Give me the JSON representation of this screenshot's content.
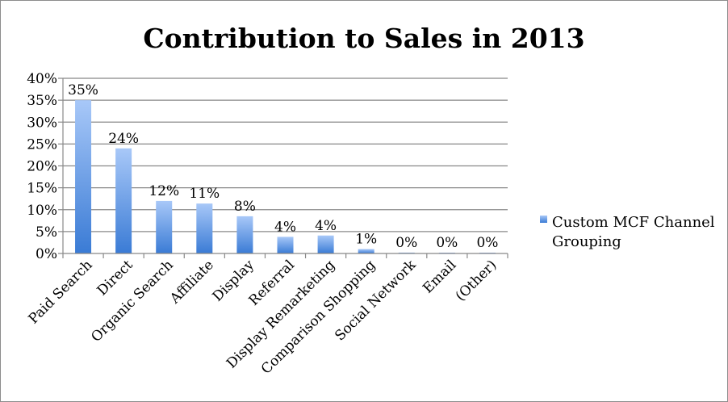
{
  "chart_data": {
    "type": "bar",
    "title": "Contribution to Sales in 2013",
    "xlabel": "",
    "ylabel": "",
    "categories": [
      "Paid Search",
      "Direct",
      "Organic Search",
      "Affiliate",
      "Display",
      "Referral",
      "Display Remarketing",
      "Comparison Shopping",
      "Social Network",
      "Email",
      "(Other)"
    ],
    "series": [
      {
        "name": "Custom MCF Channel Grouping",
        "values": [
          0.35,
          0.24,
          0.12,
          0.114,
          0.085,
          0.038,
          0.041,
          0.01,
          0.002,
          0.001,
          0.001
        ],
        "labels": [
          "35%",
          "24%",
          "12%",
          "11%",
          "8%",
          "4%",
          "4%",
          "1%",
          "0%",
          "0%",
          "0%"
        ]
      }
    ],
    "ylim": [
      0,
      0.4
    ],
    "yticks": [
      0,
      0.05,
      0.1,
      0.15,
      0.2,
      0.25,
      0.3,
      0.35,
      0.4
    ],
    "ytick_labels": [
      "0%",
      "5%",
      "10%",
      "15%",
      "20%",
      "25%",
      "30%",
      "35%",
      "40%"
    ],
    "grid": true,
    "legend": {
      "position": "right",
      "entries": [
        "Custom MCF Channel",
        "Grouping"
      ]
    },
    "colors": {
      "bar_top": "#a8c8f8",
      "bar_bottom": "#3a7bd5",
      "grid": "#888888",
      "axis": "#888888"
    }
  }
}
